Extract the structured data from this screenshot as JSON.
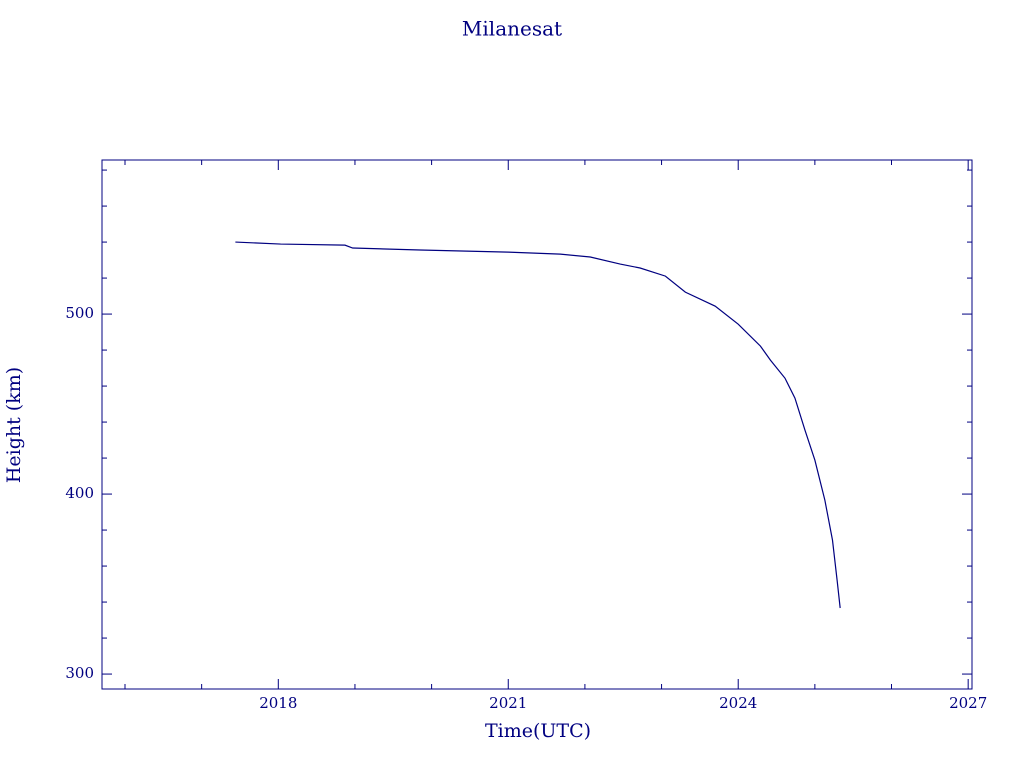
{
  "chart_data": {
    "type": "line",
    "title": "Milanesat",
    "x_label": "Time(UTC)",
    "y_label": "Height (km)",
    "color": "#000080",
    "x": [
      2017.44,
      2018.03,
      2018.87,
      2018.97,
      2019.85,
      2021.0,
      2021.68,
      2022.07,
      2022.46,
      2022.72,
      2023.05,
      2023.31,
      2023.7,
      2024.0,
      2024.29,
      2024.42,
      2024.61,
      2024.74,
      2024.87,
      2025.0,
      2025.13,
      2025.23,
      2025.29,
      2025.33
    ],
    "values": [
      540,
      538.9,
      538.3,
      536.7,
      535.6,
      534.4,
      533.3,
      531.7,
      527.8,
      525.6,
      521.1,
      512.2,
      504.4,
      494.4,
      482.2,
      474.4,
      464.4,
      453.3,
      435.6,
      418.9,
      396.7,
      374.4,
      352.2,
      336.7
    ],
    "xlim": [
      2015.7,
      2027.05
    ],
    "xticks": [
      2018,
      2021,
      2024,
      2027
    ],
    "xminorticks": [
      2016,
      2017,
      2019,
      2020,
      2022,
      2023,
      2025,
      2026
    ],
    "ylim": [
      291.7,
      585.6
    ],
    "yticks": [
      300,
      400,
      500
    ],
    "yminorticks": [
      320,
      340,
      360,
      380,
      420,
      440,
      460,
      480,
      520,
      540,
      560,
      580
    ]
  }
}
